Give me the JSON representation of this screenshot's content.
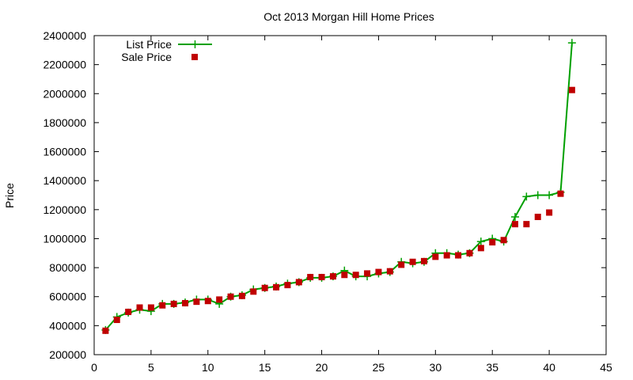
{
  "chart_data": {
    "type": "scatter",
    "title": "Oct 2013 Morgan Hill Home Prices",
    "xlabel": "",
    "ylabel": "Price",
    "xlim": [
      0,
      45
    ],
    "ylim": [
      200000,
      2400000
    ],
    "xticks": [
      0,
      5,
      10,
      15,
      20,
      25,
      30,
      35,
      40,
      45
    ],
    "yticks": [
      200000,
      400000,
      600000,
      800000,
      1000000,
      1200000,
      1400000,
      1600000,
      1800000,
      2000000,
      2200000,
      2400000
    ],
    "xtick_labels": [
      "0",
      "5",
      "10",
      "15",
      "20",
      "25",
      "30",
      "35",
      "40",
      "45"
    ],
    "ytick_labels": [
      "200000",
      "400000",
      "600000",
      "800000",
      "1000000",
      "1200000",
      "1400000",
      "1600000",
      "1800000",
      "2000000",
      "2200000",
      "2400000"
    ],
    "grid": false,
    "legend_position": "top-left",
    "x": [
      1,
      2,
      3,
      4,
      5,
      6,
      7,
      8,
      9,
      10,
      11,
      12,
      13,
      14,
      15,
      16,
      17,
      18,
      19,
      20,
      21,
      22,
      23,
      24,
      25,
      26,
      27,
      28,
      29,
      30,
      31,
      32,
      33,
      34,
      35,
      36,
      37,
      38,
      39,
      40,
      41,
      42
    ],
    "series": [
      {
        "name": "List Price",
        "style": "linespoints",
        "color": "#00a000",
        "values": [
          370000,
          460000,
          490000,
          510000,
          500000,
          550000,
          550000,
          560000,
          580000,
          580000,
          550000,
          600000,
          610000,
          650000,
          660000,
          670000,
          690000,
          700000,
          730000,
          730000,
          740000,
          780000,
          740000,
          740000,
          760000,
          770000,
          840000,
          830000,
          840000,
          900000,
          900000,
          890000,
          900000,
          980000,
          1000000,
          980000,
          1150000,
          1290000,
          1300000,
          1300000,
          1320000,
          2350000
        ]
      },
      {
        "name": "Sale Price",
        "style": "points",
        "color": "#c00000",
        "values": [
          365000,
          440000,
          495000,
          525000,
          525000,
          540000,
          550000,
          555000,
          565000,
          570000,
          580000,
          600000,
          605000,
          635000,
          660000,
          665000,
          680000,
          700000,
          735000,
          735000,
          740000,
          750000,
          750000,
          760000,
          770000,
          775000,
          820000,
          840000,
          845000,
          875000,
          885000,
          885000,
          900000,
          935000,
          975000,
          990000,
          1100000,
          1100000,
          1150000,
          1180000,
          1310000,
          2025000
        ]
      }
    ]
  }
}
